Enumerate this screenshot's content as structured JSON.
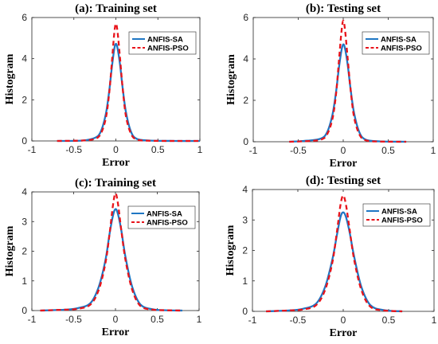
{
  "colors": {
    "sa": "#1f77c4",
    "pso": "#e8141b"
  },
  "chart_data": [
    {
      "type": "line",
      "title": "(a): Training set",
      "xlabel": "Error",
      "ylabel": "Histogram",
      "xlim": [
        -1,
        1
      ],
      "ylim": [
        0,
        6
      ],
      "xticks": [
        "-1",
        "-0.5",
        "0",
        "0.5",
        "1"
      ],
      "yticks": [
        "0",
        "2",
        "4",
        "6"
      ],
      "legend": {
        "position": "top-right"
      },
      "series": [
        {
          "name": "ANFIS-SA",
          "style": "solid",
          "x": [
            -0.7,
            -0.4,
            -0.25,
            -0.18,
            -0.12,
            -0.08,
            -0.05,
            -0.02,
            0.0,
            0.02,
            0.05,
            0.08,
            0.12,
            0.18,
            0.25,
            0.4,
            0.7,
            1.0
          ],
          "y": [
            0,
            0.02,
            0.15,
            0.45,
            1.3,
            2.4,
            3.5,
            4.45,
            4.72,
            4.5,
            3.7,
            2.6,
            1.4,
            0.45,
            0.1,
            0.02,
            0,
            0
          ]
        },
        {
          "name": "ANFIS-PSO",
          "style": "dashed",
          "x": [
            -0.7,
            -0.4,
            -0.25,
            -0.18,
            -0.12,
            -0.08,
            -0.05,
            -0.02,
            0.0,
            0.02,
            0.05,
            0.08,
            0.12,
            0.18,
            0.25,
            0.4,
            0.7,
            1.0
          ],
          "y": [
            0,
            0.02,
            0.1,
            0.35,
            1.1,
            2.3,
            3.7,
            5.2,
            5.7,
            5.3,
            4.0,
            2.6,
            1.2,
            0.35,
            0.07,
            0.01,
            0,
            0
          ]
        }
      ]
    },
    {
      "type": "line",
      "title": "(b): Testing set",
      "xlabel": "Error",
      "ylabel": "Histogram",
      "xlim": [
        -1,
        1
      ],
      "ylim": [
        0,
        6
      ],
      "xticks": [
        "-1",
        "-0.5",
        "0",
        "0.5",
        "1"
      ],
      "yticks": [
        "0",
        "2",
        "4",
        "6"
      ],
      "legend": {
        "position": "top-right"
      },
      "series": [
        {
          "name": "ANFIS-SA",
          "style": "solid",
          "x": [
            -0.6,
            -0.4,
            -0.25,
            -0.18,
            -0.12,
            -0.08,
            -0.05,
            -0.02,
            0.0,
            0.02,
            0.05,
            0.08,
            0.12,
            0.18,
            0.25,
            0.4,
            0.7
          ],
          "y": [
            0,
            0.05,
            0.15,
            0.45,
            1.3,
            2.4,
            3.5,
            4.4,
            4.7,
            4.5,
            3.7,
            2.6,
            1.4,
            0.45,
            0.1,
            0.02,
            0
          ]
        },
        {
          "name": "ANFIS-PSO",
          "style": "dashed",
          "x": [
            -0.6,
            -0.4,
            -0.25,
            -0.18,
            -0.12,
            -0.08,
            -0.05,
            -0.02,
            0.0,
            0.02,
            0.05,
            0.08,
            0.12,
            0.18,
            0.25,
            0.4,
            0.7
          ],
          "y": [
            0,
            0.03,
            0.1,
            0.35,
            1.1,
            2.3,
            3.8,
            5.3,
            5.85,
            5.4,
            4.0,
            2.6,
            1.2,
            0.35,
            0.07,
            0.01,
            0
          ]
        }
      ]
    },
    {
      "type": "line",
      "title": "(c): Training set",
      "xlabel": "Error",
      "ylabel": "Histogram",
      "xlim": [
        -1,
        1
      ],
      "ylim": [
        0,
        4
      ],
      "xticks": [
        "-1",
        "-0.5",
        "0",
        "0.5",
        "1"
      ],
      "yticks": [
        "0",
        "1",
        "2",
        "3",
        "4"
      ],
      "legend": {
        "position": "top-right"
      },
      "series": [
        {
          "name": "ANFIS-SA",
          "style": "solid",
          "x": [
            -0.9,
            -0.6,
            -0.45,
            -0.3,
            -0.2,
            -0.12,
            -0.07,
            -0.03,
            0.0,
            0.03,
            0.07,
            0.12,
            0.2,
            0.3,
            0.45,
            0.6,
            0.8
          ],
          "y": [
            0,
            0.03,
            0.08,
            0.25,
            0.8,
            1.7,
            2.6,
            3.2,
            3.42,
            3.25,
            2.7,
            1.8,
            0.8,
            0.2,
            0.04,
            0.01,
            0
          ]
        },
        {
          "name": "ANFIS-PSO",
          "style": "dashed",
          "x": [
            -0.9,
            -0.6,
            -0.45,
            -0.3,
            -0.2,
            -0.12,
            -0.07,
            -0.03,
            0.0,
            0.03,
            0.07,
            0.12,
            0.2,
            0.3,
            0.45,
            0.6,
            0.8
          ],
          "y": [
            0,
            0.03,
            0.06,
            0.2,
            0.7,
            1.6,
            2.6,
            3.55,
            3.95,
            3.6,
            2.7,
            1.7,
            0.7,
            0.15,
            0.03,
            0.01,
            0
          ]
        }
      ]
    },
    {
      "type": "line",
      "title": "(d): Testing set",
      "xlabel": "Error",
      "ylabel": "Histogram",
      "xlim": [
        -1,
        1
      ],
      "ylim": [
        0,
        4
      ],
      "xticks": [
        "-1",
        "-0.5",
        "0",
        "0.5",
        "1"
      ],
      "yticks": [
        "0",
        "1",
        "2",
        "3",
        "4"
      ],
      "legend": {
        "position": "top-right"
      },
      "series": [
        {
          "name": "ANFIS-SA",
          "style": "solid",
          "x": [
            -0.85,
            -0.6,
            -0.45,
            -0.3,
            -0.2,
            -0.12,
            -0.07,
            -0.03,
            0.0,
            0.03,
            0.07,
            0.12,
            0.2,
            0.3,
            0.45,
            0.65
          ],
          "y": [
            0,
            0.03,
            0.08,
            0.25,
            0.8,
            1.7,
            2.5,
            3.1,
            3.25,
            3.1,
            2.6,
            1.8,
            0.8,
            0.2,
            0.04,
            0
          ]
        },
        {
          "name": "ANFIS-PSO",
          "style": "dashed",
          "x": [
            -0.85,
            -0.6,
            -0.45,
            -0.3,
            -0.2,
            -0.12,
            -0.07,
            -0.03,
            0.0,
            0.03,
            0.07,
            0.12,
            0.2,
            0.3,
            0.45,
            0.65
          ],
          "y": [
            0,
            0.03,
            0.06,
            0.2,
            0.7,
            1.6,
            2.6,
            3.5,
            3.8,
            3.5,
            2.7,
            1.7,
            0.7,
            0.15,
            0.03,
            0
          ]
        }
      ]
    }
  ]
}
